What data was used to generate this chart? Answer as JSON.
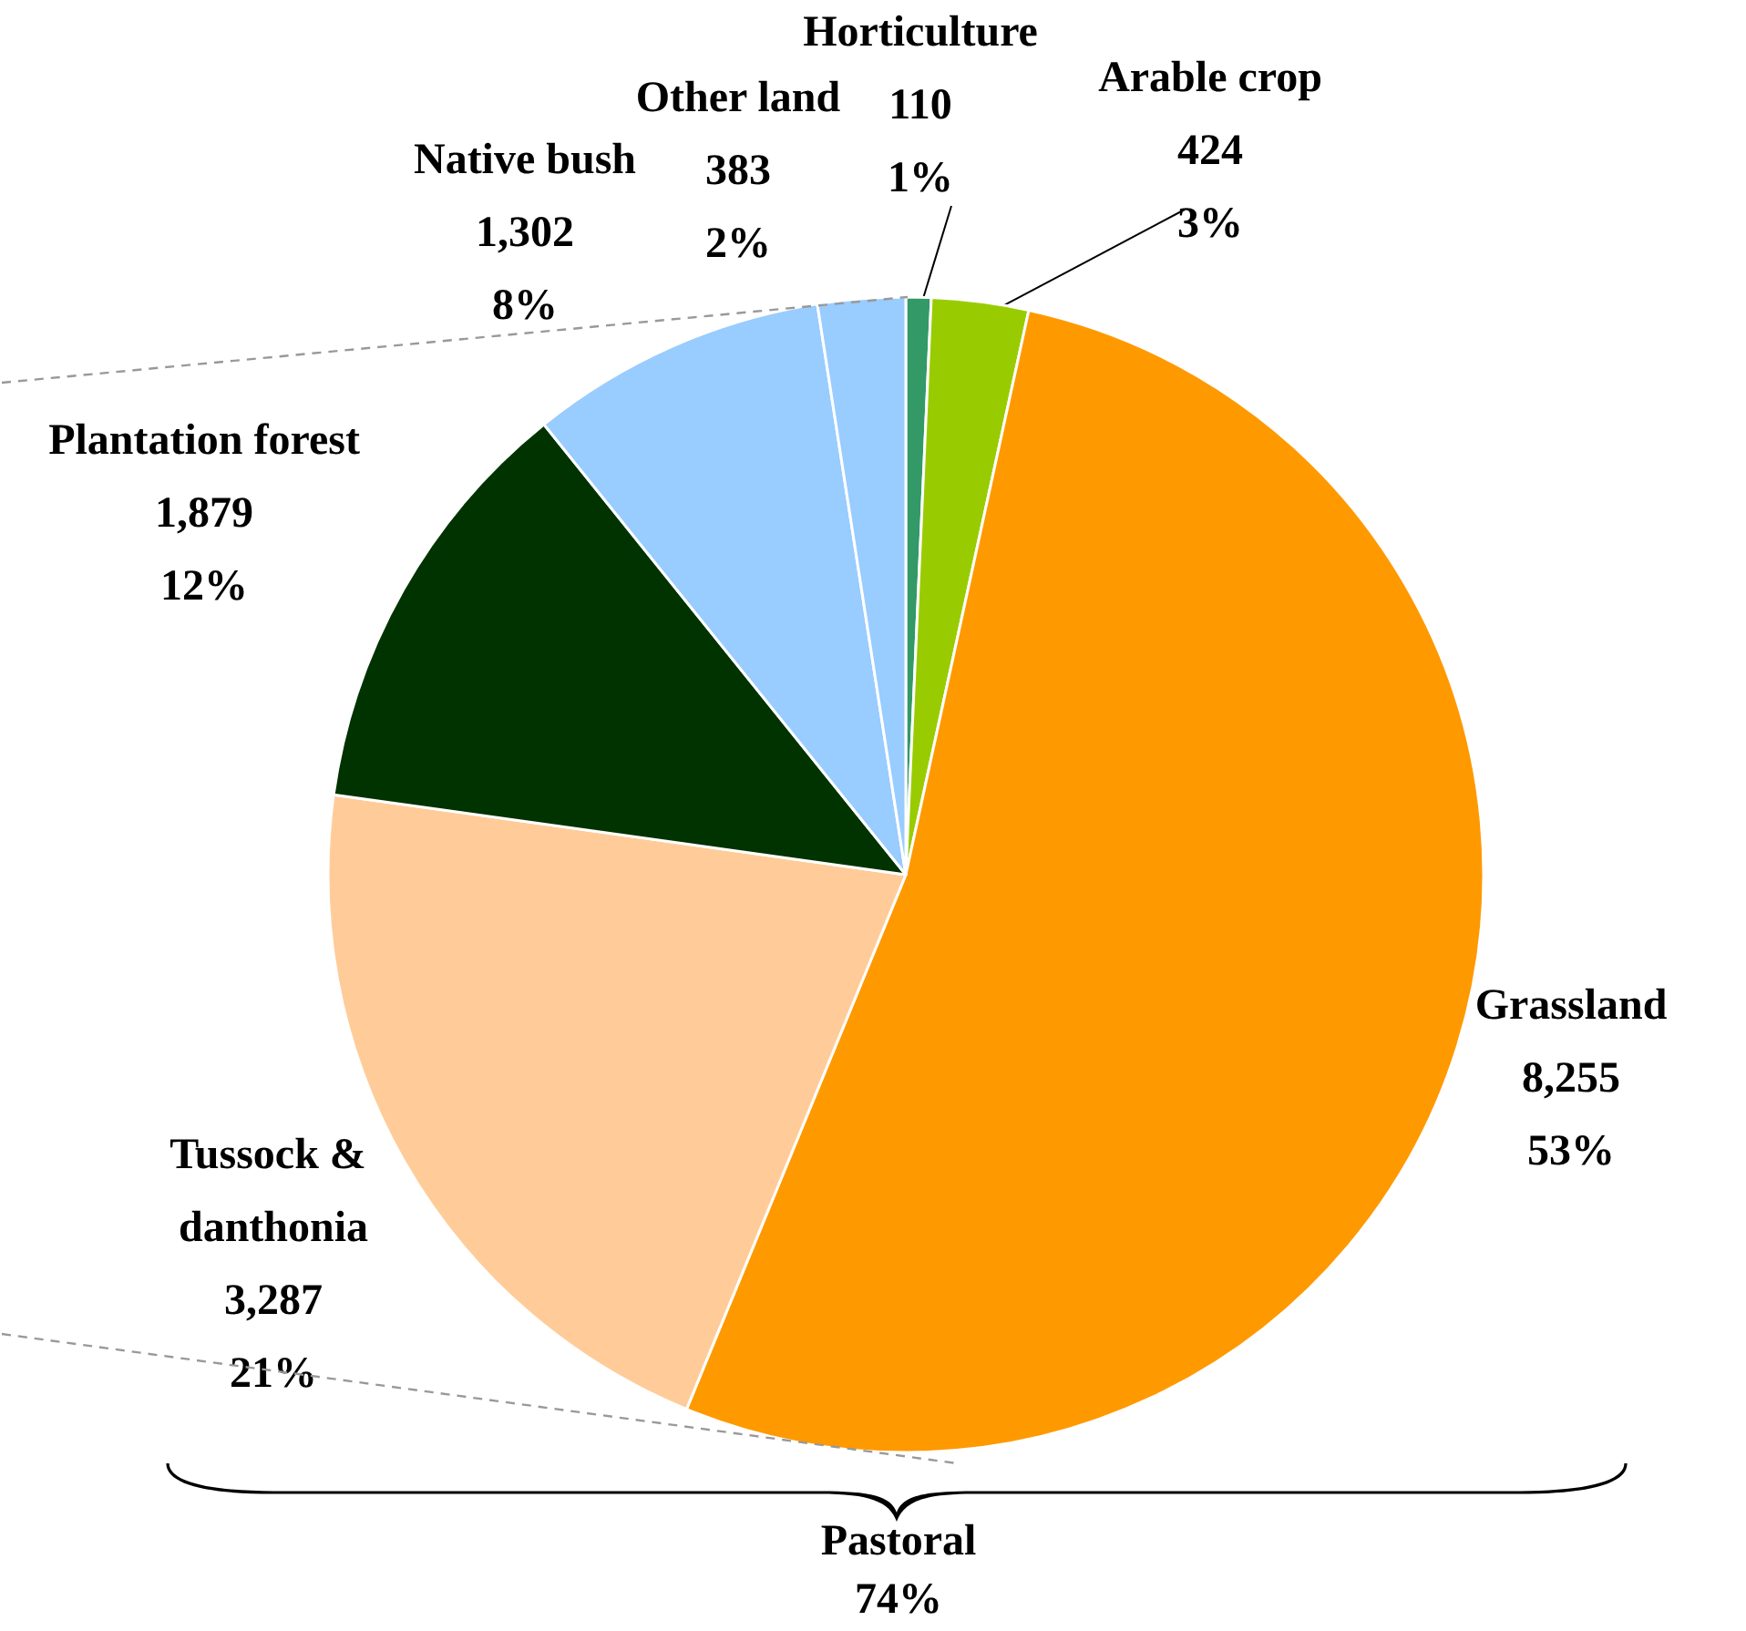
{
  "chart_data": {
    "type": "pie",
    "categories": [
      "Horticulture",
      "Arable crop",
      "Grassland",
      "Tussock & danthonia",
      "Plantation forest",
      "Native bush",
      "Other land"
    ],
    "values": [
      110,
      424,
      8255,
      3287,
      1879,
      1302,
      383
    ],
    "colors": [
      "#339966",
      "#99cc00",
      "#ff9900",
      "#ffcc99",
      "#003300",
      "#99ccff",
      "#99ccff"
    ],
    "value_labels": [
      "110\n1%",
      "424\n3%",
      "8,255\n53%",
      "3,287\n21%",
      "1,879\n12%",
      "1,302\n8%",
      "383\n2%"
    ],
    "annotations": [
      "Pastoral\n74%"
    ],
    "legend": false
  }
}
